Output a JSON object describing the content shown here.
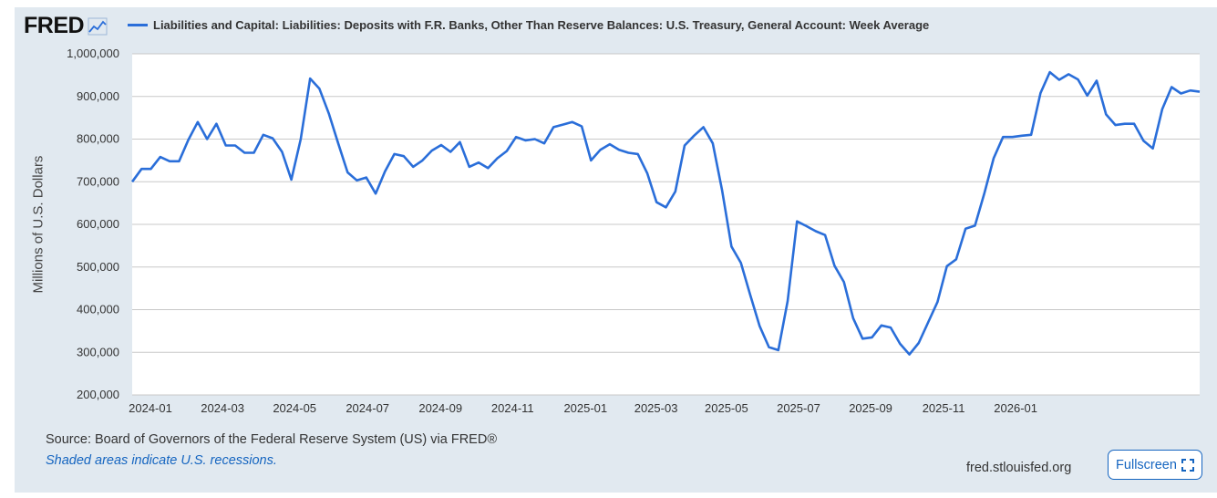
{
  "logo": {
    "text": "FRED"
  },
  "colors": {
    "line": "#2a6ed9",
    "accent": "#1565c0",
    "background": "#e1e9f0"
  },
  "footer": {
    "source": "Source: Board of Governors of the Federal Reserve System (US) via FRED®",
    "note": "Shaded areas indicate U.S. recessions.",
    "site": "fred.stlouisfed.org",
    "fullscreen_label": "Fullscreen"
  },
  "chart_data": {
    "type": "line",
    "title": "Liabilities and Capital: Liabilities: Deposits with F.R. Banks, Other Than Reserve Balances: U.S. Treasury, General Account: Week Average",
    "xlabel": "",
    "ylabel": "Millions of U.S. Dollars",
    "ylim": [
      200000,
      1000000
    ],
    "yticks": [
      200000,
      300000,
      400000,
      500000,
      600000,
      700000,
      800000,
      900000,
      1000000
    ],
    "ytick_labels": [
      "200,000",
      "300,000",
      "400,000",
      "500,000",
      "600,000",
      "700,000",
      "800,000",
      "900,000",
      "1,000,000"
    ],
    "xlim_weeks": [
      0,
      128.8
    ],
    "xticks": [
      {
        "label": "2024-01",
        "week": 2.2
      },
      {
        "label": "2024-03",
        "week": 10.9
      },
      {
        "label": "2024-05",
        "week": 19.6
      },
      {
        "label": "2024-07",
        "week": 28.4
      },
      {
        "label": "2024-09",
        "week": 37.2
      },
      {
        "label": "2024-11",
        "week": 45.9
      },
      {
        "label": "2025-01",
        "week": 54.7
      },
      {
        "label": "2025-03",
        "week": 63.2
      },
      {
        "label": "2025-05",
        "week": 71.7
      },
      {
        "label": "2025-07",
        "week": 80.4
      },
      {
        "label": "2025-09",
        "week": 89.1
      },
      {
        "label": "2025-11",
        "week": 97.9
      },
      {
        "label": "2026-01",
        "week": 106.6
      }
    ],
    "series": [
      {
        "name": "Week Average",
        "values": [
          700000,
          730000,
          730000,
          758000,
          748000,
          748000,
          798000,
          840000,
          800000,
          836000,
          785000,
          785000,
          768000,
          768000,
          810000,
          802000,
          770000,
          705000,
          800000,
          942000,
          918000,
          860000,
          790000,
          722000,
          703000,
          710000,
          672000,
          724000,
          765000,
          760000,
          735000,
          750000,
          773000,
          786000,
          770000,
          793000,
          735000,
          745000,
          732000,
          755000,
          772000,
          805000,
          797000,
          800000,
          790000,
          828000,
          834000,
          840000,
          830000,
          750000,
          775000,
          788000,
          775000,
          768000,
          765000,
          720000,
          652000,
          640000,
          677000,
          785000,
          808000,
          828000,
          790000,
          680000,
          548000,
          510000,
          435000,
          362000,
          312000,
          305000,
          420000,
          607000,
          596000,
          584000,
          575000,
          503000,
          465000,
          380000,
          332000,
          335000,
          363000,
          358000,
          320000,
          295000,
          322000,
          370000,
          418000,
          502000,
          518000,
          590000,
          597000,
          672000,
          755000,
          805000,
          805000,
          808000,
          810000,
          908000,
          957000,
          939000,
          952000,
          940000,
          902000,
          937000,
          858000,
          833000,
          836000,
          836000,
          796000,
          778000,
          870000,
          922000,
          907000,
          914000,
          911000
        ]
      }
    ]
  }
}
